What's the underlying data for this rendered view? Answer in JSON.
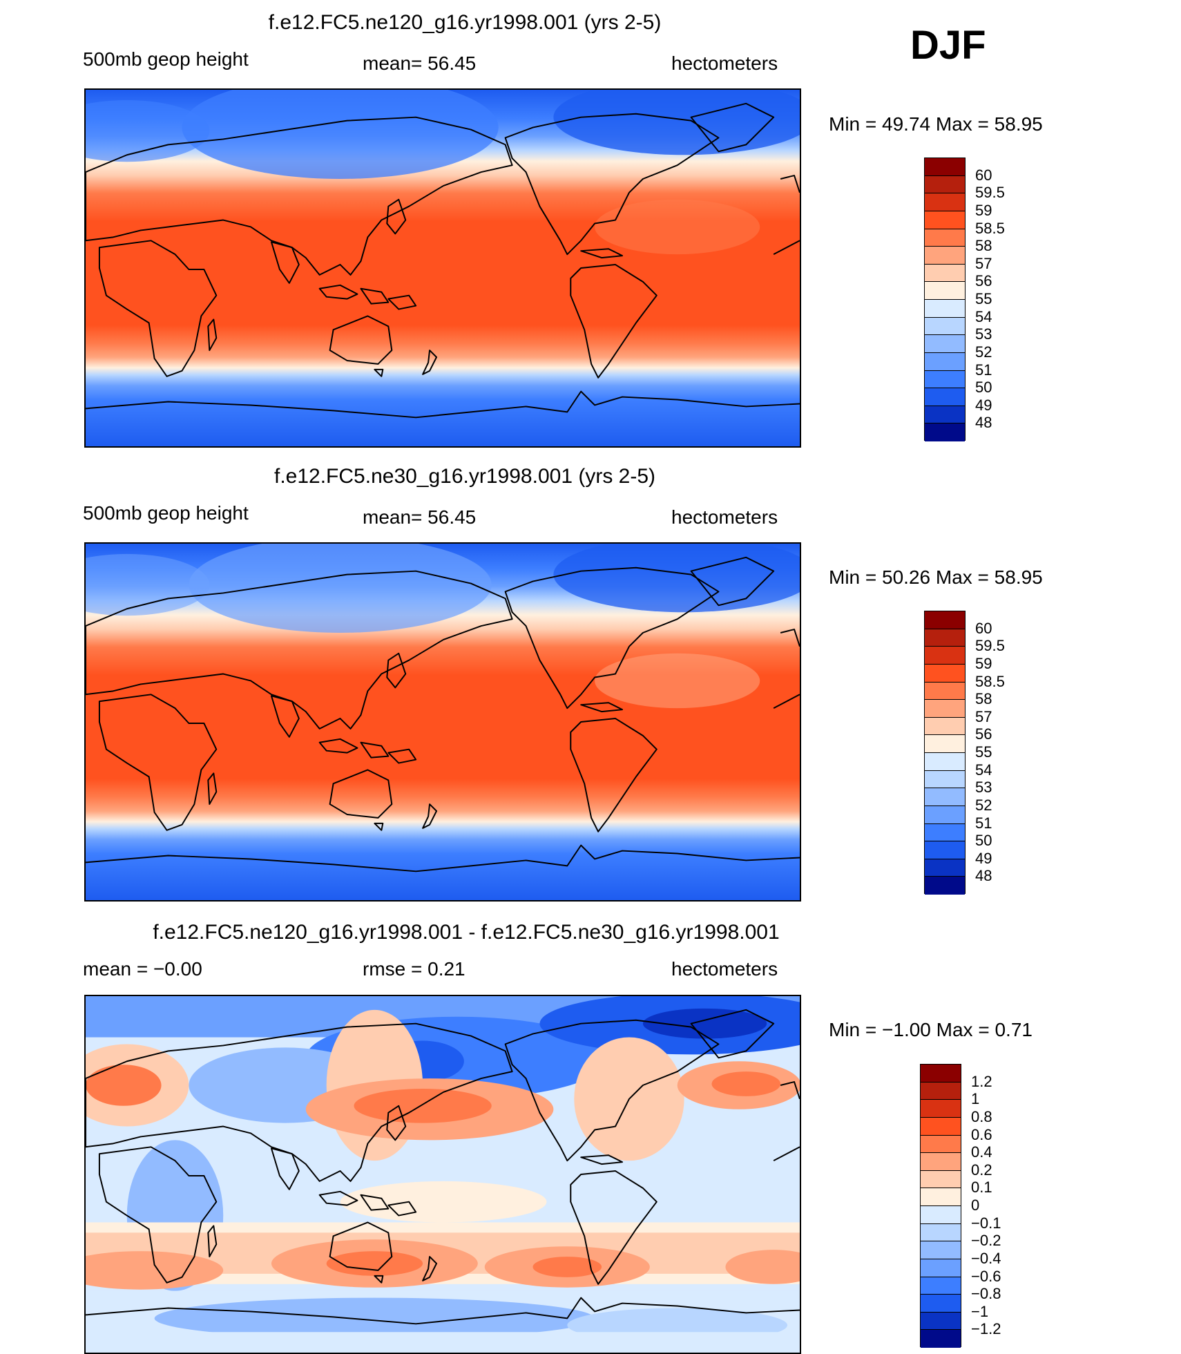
{
  "season": "DJF",
  "panels": [
    {
      "title": "f.e12.FC5.ne120_g16.yr1998.001 (yrs 2-5)",
      "left": "500mb geop height",
      "center": "mean=   56.45",
      "right": "hectometers",
      "minmax": "Min =    49.74  Max =    58.95",
      "colors": [
        "#8b0000",
        "#b5200d",
        "#d93212",
        "#ff521f",
        "#ff7a4a",
        "#ffa47d",
        "#ffcdb0",
        "#fff0df",
        "#d9ebff",
        "#b8d6ff",
        "#92bbff",
        "#6ba0ff",
        "#3d7eff",
        "#1e5cf0",
        "#0a33c4",
        "#000a8a"
      ],
      "ticks": [
        "60",
        "59.5",
        "59",
        "58.5",
        "58",
        "57",
        "56",
        "55",
        "54",
        "53",
        "52",
        "51",
        "50",
        "49",
        "48"
      ]
    },
    {
      "title": "f.e12.FC5.ne30_g16.yr1998.001 (yrs 2-5)",
      "left": "500mb geop height",
      "center": "mean=   56.45",
      "right": "hectometers",
      "minmax": "Min =    50.26  Max =    58.95",
      "colors": [
        "#8b0000",
        "#b5200d",
        "#d93212",
        "#ff521f",
        "#ff7a4a",
        "#ffa47d",
        "#ffcdb0",
        "#fff0df",
        "#d9ebff",
        "#b8d6ff",
        "#92bbff",
        "#6ba0ff",
        "#3d7eff",
        "#1e5cf0",
        "#0a33c4",
        "#000a8a"
      ],
      "ticks": [
        "60",
        "59.5",
        "59",
        "58.5",
        "58",
        "57",
        "56",
        "55",
        "54",
        "53",
        "52",
        "51",
        "50",
        "49",
        "48"
      ]
    },
    {
      "title": "f.e12.FC5.ne120_g16.yr1998.001 - f.e12.FC5.ne30_g16.yr1998.001",
      "left": "mean =   −0.00",
      "center": "rmse =     0.21",
      "right": "hectometers",
      "minmax": "Min =   −1.00  Max =     0.71",
      "colors": [
        "#8b0000",
        "#b5200d",
        "#d93212",
        "#ff521f",
        "#ff7a4a",
        "#ffa47d",
        "#ffcdb0",
        "#fff0df",
        "#d9ebff",
        "#b8d6ff",
        "#92bbff",
        "#6ba0ff",
        "#3d7eff",
        "#1e5cf0",
        "#0a33c4",
        "#000a8a"
      ],
      "ticks": [
        "1.2",
        "1",
        "0.8",
        "0.6",
        "0.4",
        "0.2",
        "0.1",
        "0",
        "−0.1",
        "−0.2",
        "−0.4",
        "−0.6",
        "−0.8",
        "−1",
        "−1.2"
      ]
    }
  ]
}
